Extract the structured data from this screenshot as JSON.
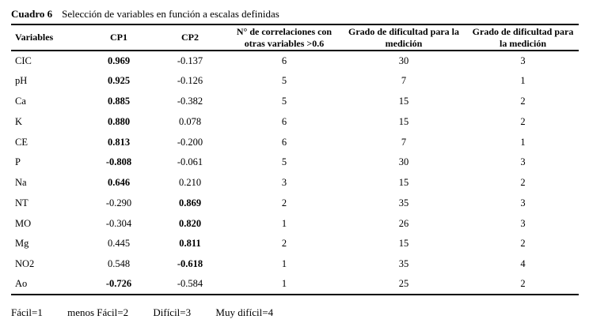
{
  "caption": {
    "label": "Cuadro 6",
    "text": "Selección de variables en función a escalas definidas"
  },
  "table": {
    "columns": [
      {
        "label": "Variables"
      },
      {
        "label": "CP1"
      },
      {
        "label": "CP2"
      },
      {
        "label": "N° de correlaciones con otras variables >0.6"
      },
      {
        "label": "Grado de dificultad para la medición"
      },
      {
        "label": "Grado de dificultad para la medición"
      }
    ],
    "rows": [
      {
        "variable": "CIC",
        "cp1": "0.969",
        "cp1_bold": true,
        "cp2": "-0.137",
        "cp2_bold": false,
        "correlations": "6",
        "difficulty_grade": "30",
        "difficulty_scale": "3"
      },
      {
        "variable": "pH",
        "cp1": "0.925",
        "cp1_bold": true,
        "cp2": "-0.126",
        "cp2_bold": false,
        "correlations": "5",
        "difficulty_grade": "7",
        "difficulty_scale": "1"
      },
      {
        "variable": "Ca",
        "cp1": "0.885",
        "cp1_bold": true,
        "cp2": "-0.382",
        "cp2_bold": false,
        "correlations": "5",
        "difficulty_grade": "15",
        "difficulty_scale": "2"
      },
      {
        "variable": "K",
        "cp1": "0.880",
        "cp1_bold": true,
        "cp2": "0.078",
        "cp2_bold": false,
        "correlations": "6",
        "difficulty_grade": "15",
        "difficulty_scale": "2"
      },
      {
        "variable": "CE",
        "cp1": "0.813",
        "cp1_bold": true,
        "cp2": "-0.200",
        "cp2_bold": false,
        "correlations": "6",
        "difficulty_grade": "7",
        "difficulty_scale": "1"
      },
      {
        "variable": "P",
        "cp1": "-0.808",
        "cp1_bold": true,
        "cp2": "-0.061",
        "cp2_bold": false,
        "correlations": "5",
        "difficulty_grade": "30",
        "difficulty_scale": "3"
      },
      {
        "variable": "Na",
        "cp1": "0.646",
        "cp1_bold": true,
        "cp2": "0.210",
        "cp2_bold": false,
        "correlations": "3",
        "difficulty_grade": "15",
        "difficulty_scale": "2"
      },
      {
        "variable": "NT",
        "cp1": "-0.290",
        "cp1_bold": false,
        "cp2": "0.869",
        "cp2_bold": true,
        "correlations": "2",
        "difficulty_grade": "35",
        "difficulty_scale": "3"
      },
      {
        "variable": "MO",
        "cp1": "-0.304",
        "cp1_bold": false,
        "cp2": "0.820",
        "cp2_bold": true,
        "correlations": "1",
        "difficulty_grade": "26",
        "difficulty_scale": "3"
      },
      {
        "variable": "Mg",
        "cp1": "0.445",
        "cp1_bold": false,
        "cp2": "0.811",
        "cp2_bold": true,
        "correlations": "2",
        "difficulty_grade": "15",
        "difficulty_scale": "2"
      },
      {
        "variable": "NO2",
        "cp1": "0.548",
        "cp1_bold": false,
        "cp2": "-0.618",
        "cp2_bold": true,
        "correlations": "1",
        "difficulty_grade": "35",
        "difficulty_scale": "4"
      },
      {
        "variable": "Ao",
        "cp1": "-0.726",
        "cp1_bold": true,
        "cp2": "-0.584",
        "cp2_bold": false,
        "correlations": "1",
        "difficulty_grade": "25",
        "difficulty_scale": "2"
      }
    ]
  },
  "footer": {
    "items": [
      "Fácil=1",
      "menos Fácil=2",
      "Difícil=3",
      "Muy difícil=4"
    ]
  }
}
